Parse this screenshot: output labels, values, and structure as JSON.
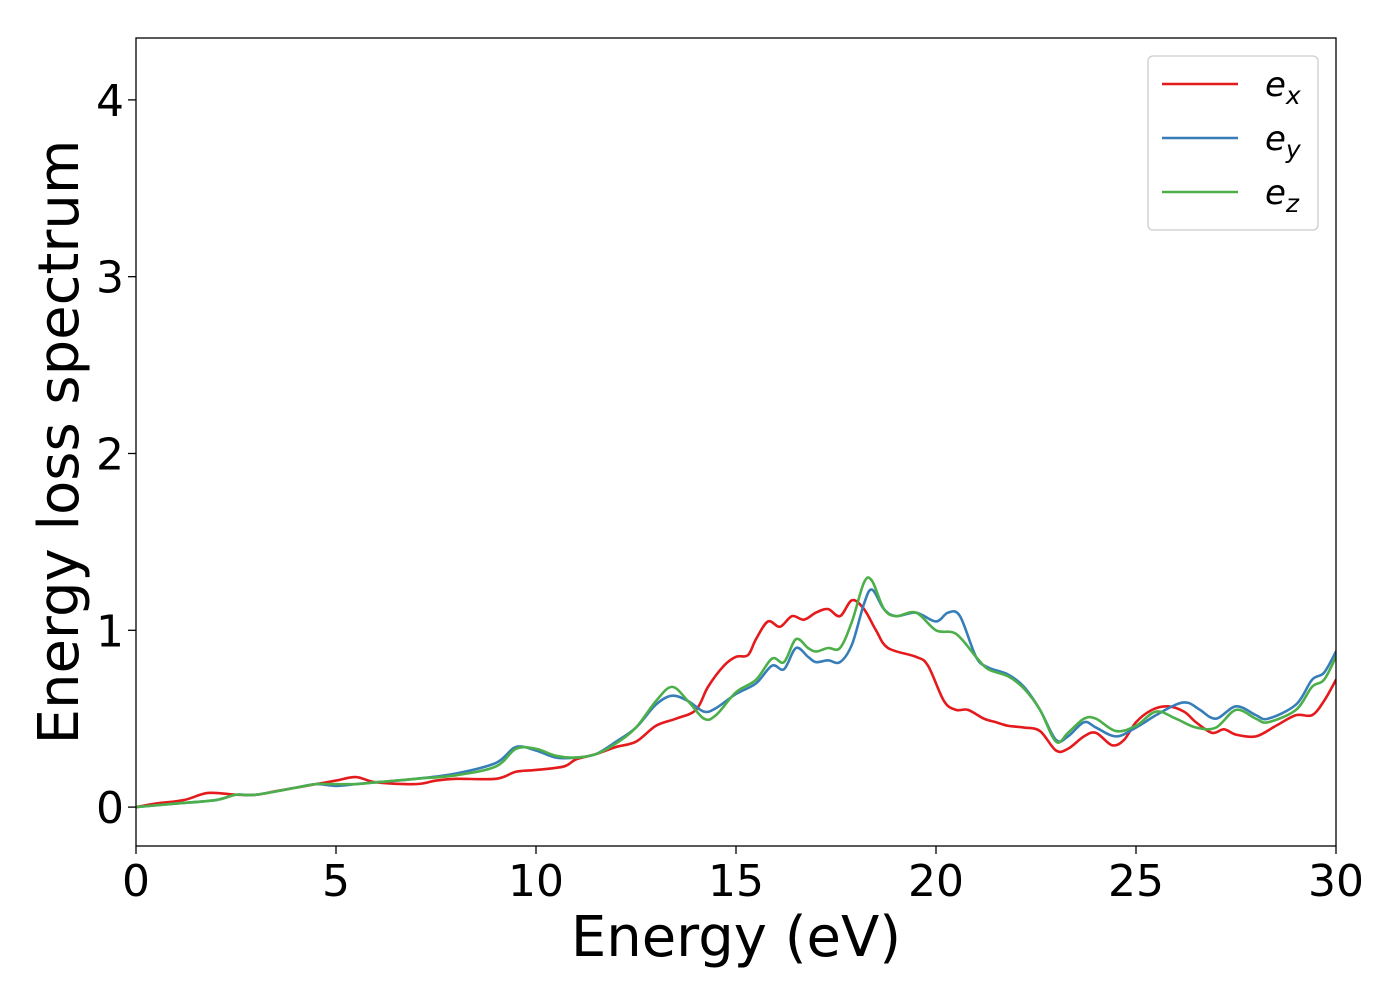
{
  "chart_data": {
    "type": "line",
    "xlabel": "Energy (eV)",
    "ylabel": "Energy loss spectrum",
    "xlim": [
      0,
      30
    ],
    "ylim": [
      -0.22,
      4.35
    ],
    "xticks": [
      0,
      5,
      10,
      15,
      20,
      25,
      30
    ],
    "xtick_labels": [
      "0",
      "5",
      "10",
      "15",
      "20",
      "25",
      "30"
    ],
    "yticks": [
      0,
      1,
      2,
      3,
      4
    ],
    "ytick_labels": [
      "0",
      "1",
      "2",
      "3",
      "4"
    ],
    "grid": false,
    "legend_position": "top-right",
    "series": [
      {
        "name": "e_x",
        "legend": {
          "base": "e",
          "sub": "x"
        },
        "color": "#e41a1c",
        "points": [
          [
            0,
            0
          ],
          [
            0.5,
            0.02
          ],
          [
            1.2,
            0.04
          ],
          [
            1.8,
            0.08
          ],
          [
            2.5,
            0.07
          ],
          [
            3,
            0.07
          ],
          [
            3.5,
            0.09
          ],
          [
            4,
            0.11
          ],
          [
            4.5,
            0.13
          ],
          [
            5,
            0.15
          ],
          [
            5.5,
            0.17
          ],
          [
            6,
            0.14
          ],
          [
            7,
            0.13
          ],
          [
            7.5,
            0.15
          ],
          [
            8,
            0.16
          ],
          [
            9,
            0.16
          ],
          [
            9.5,
            0.2
          ],
          [
            10,
            0.21
          ],
          [
            10.7,
            0.23
          ],
          [
            11,
            0.27
          ],
          [
            11.5,
            0.3
          ],
          [
            12,
            0.34
          ],
          [
            12.5,
            0.37
          ],
          [
            13,
            0.46
          ],
          [
            13.5,
            0.5
          ],
          [
            14,
            0.55
          ],
          [
            14.3,
            0.68
          ],
          [
            14.7,
            0.8
          ],
          [
            15,
            0.85
          ],
          [
            15.3,
            0.86
          ],
          [
            15.5,
            0.95
          ],
          [
            15.8,
            1.05
          ],
          [
            16.1,
            1.02
          ],
          [
            16.4,
            1.08
          ],
          [
            16.7,
            1.06
          ],
          [
            17,
            1.1
          ],
          [
            17.3,
            1.12
          ],
          [
            17.6,
            1.08
          ],
          [
            17.9,
            1.17
          ],
          [
            18.2,
            1.12
          ],
          [
            18.5,
            1.0
          ],
          [
            18.8,
            0.9
          ],
          [
            19.5,
            0.85
          ],
          [
            19.8,
            0.8
          ],
          [
            20.2,
            0.6
          ],
          [
            20.5,
            0.55
          ],
          [
            20.8,
            0.55
          ],
          [
            21.2,
            0.5
          ],
          [
            21.5,
            0.48
          ],
          [
            21.8,
            0.46
          ],
          [
            22.2,
            0.45
          ],
          [
            22.6,
            0.43
          ],
          [
            23,
            0.32
          ],
          [
            23.3,
            0.33
          ],
          [
            23.7,
            0.4
          ],
          [
            24,
            0.42
          ],
          [
            24.4,
            0.35
          ],
          [
            24.7,
            0.38
          ],
          [
            25,
            0.48
          ],
          [
            25.4,
            0.55
          ],
          [
            25.8,
            0.57
          ],
          [
            26.2,
            0.54
          ],
          [
            26.5,
            0.48
          ],
          [
            26.9,
            0.42
          ],
          [
            27.2,
            0.44
          ],
          [
            27.5,
            0.41
          ],
          [
            28,
            0.4
          ],
          [
            28.5,
            0.46
          ],
          [
            29,
            0.52
          ],
          [
            29.4,
            0.52
          ],
          [
            29.7,
            0.6
          ],
          [
            30,
            0.72
          ]
        ]
      },
      {
        "name": "e_y",
        "legend": {
          "base": "e",
          "sub": "y"
        },
        "color": "#377eb8",
        "points": [
          [
            0,
            0
          ],
          [
            1,
            0.02
          ],
          [
            2,
            0.04
          ],
          [
            2.5,
            0.07
          ],
          [
            3,
            0.07
          ],
          [
            4,
            0.11
          ],
          [
            4.5,
            0.13
          ],
          [
            5,
            0.12
          ],
          [
            5.5,
            0.13
          ],
          [
            6,
            0.14
          ],
          [
            7,
            0.16
          ],
          [
            8,
            0.19
          ],
          [
            9,
            0.25
          ],
          [
            9.5,
            0.34
          ],
          [
            10,
            0.32
          ],
          [
            10.5,
            0.28
          ],
          [
            11,
            0.28
          ],
          [
            11.5,
            0.3
          ],
          [
            12,
            0.37
          ],
          [
            12.5,
            0.45
          ],
          [
            13,
            0.58
          ],
          [
            13.4,
            0.63
          ],
          [
            13.8,
            0.6
          ],
          [
            14.2,
            0.54
          ],
          [
            14.5,
            0.56
          ],
          [
            15,
            0.64
          ],
          [
            15.5,
            0.7
          ],
          [
            15.9,
            0.8
          ],
          [
            16.2,
            0.78
          ],
          [
            16.5,
            0.9
          ],
          [
            16.8,
            0.85
          ],
          [
            17,
            0.82
          ],
          [
            17.3,
            0.83
          ],
          [
            17.6,
            0.82
          ],
          [
            17.9,
            0.92
          ],
          [
            18.2,
            1.15
          ],
          [
            18.4,
            1.23
          ],
          [
            18.7,
            1.12
          ],
          [
            19,
            1.08
          ],
          [
            19.5,
            1.1
          ],
          [
            20,
            1.05
          ],
          [
            20.3,
            1.1
          ],
          [
            20.6,
            1.08
          ],
          [
            21,
            0.85
          ],
          [
            21.3,
            0.79
          ],
          [
            21.8,
            0.75
          ],
          [
            22.2,
            0.68
          ],
          [
            22.6,
            0.55
          ],
          [
            23,
            0.38
          ],
          [
            23.3,
            0.4
          ],
          [
            23.7,
            0.48
          ],
          [
            24,
            0.45
          ],
          [
            24.5,
            0.4
          ],
          [
            25,
            0.45
          ],
          [
            25.5,
            0.52
          ],
          [
            26,
            0.58
          ],
          [
            26.3,
            0.59
          ],
          [
            26.6,
            0.55
          ],
          [
            27,
            0.5
          ],
          [
            27.5,
            0.57
          ],
          [
            28,
            0.52
          ],
          [
            28.3,
            0.5
          ],
          [
            29,
            0.58
          ],
          [
            29.4,
            0.72
          ],
          [
            29.7,
            0.76
          ],
          [
            30,
            0.88
          ]
        ]
      },
      {
        "name": "e_z",
        "legend": {
          "base": "e",
          "sub": "z"
        },
        "color": "#4daf4a",
        "points": [
          [
            0,
            0
          ],
          [
            1,
            0.02
          ],
          [
            2,
            0.04
          ],
          [
            2.5,
            0.07
          ],
          [
            3,
            0.07
          ],
          [
            4,
            0.11
          ],
          [
            4.5,
            0.13
          ],
          [
            5,
            0.13
          ],
          [
            5.5,
            0.13
          ],
          [
            6,
            0.14
          ],
          [
            7,
            0.16
          ],
          [
            8,
            0.18
          ],
          [
            9,
            0.23
          ],
          [
            9.5,
            0.33
          ],
          [
            10,
            0.33
          ],
          [
            10.5,
            0.29
          ],
          [
            11,
            0.28
          ],
          [
            11.5,
            0.3
          ],
          [
            12,
            0.36
          ],
          [
            12.5,
            0.45
          ],
          [
            13,
            0.6
          ],
          [
            13.4,
            0.68
          ],
          [
            13.8,
            0.6
          ],
          [
            14.2,
            0.5
          ],
          [
            14.5,
            0.52
          ],
          [
            15,
            0.65
          ],
          [
            15.5,
            0.72
          ],
          [
            15.9,
            0.84
          ],
          [
            16.2,
            0.82
          ],
          [
            16.5,
            0.95
          ],
          [
            16.8,
            0.9
          ],
          [
            17,
            0.88
          ],
          [
            17.3,
            0.9
          ],
          [
            17.6,
            0.9
          ],
          [
            17.9,
            1.05
          ],
          [
            18.2,
            1.27
          ],
          [
            18.4,
            1.28
          ],
          [
            18.7,
            1.12
          ],
          [
            19,
            1.08
          ],
          [
            19.5,
            1.1
          ],
          [
            20,
            1.0
          ],
          [
            20.5,
            0.98
          ],
          [
            21,
            0.85
          ],
          [
            21.3,
            0.78
          ],
          [
            21.8,
            0.74
          ],
          [
            22.2,
            0.67
          ],
          [
            22.6,
            0.55
          ],
          [
            23,
            0.37
          ],
          [
            23.3,
            0.42
          ],
          [
            23.7,
            0.5
          ],
          [
            24,
            0.5
          ],
          [
            24.5,
            0.43
          ],
          [
            25,
            0.46
          ],
          [
            25.5,
            0.54
          ],
          [
            26,
            0.5
          ],
          [
            26.5,
            0.45
          ],
          [
            27,
            0.45
          ],
          [
            27.5,
            0.55
          ],
          [
            28,
            0.5
          ],
          [
            28.3,
            0.48
          ],
          [
            29,
            0.55
          ],
          [
            29.4,
            0.68
          ],
          [
            29.7,
            0.72
          ],
          [
            30,
            0.85
          ]
        ]
      }
    ]
  }
}
